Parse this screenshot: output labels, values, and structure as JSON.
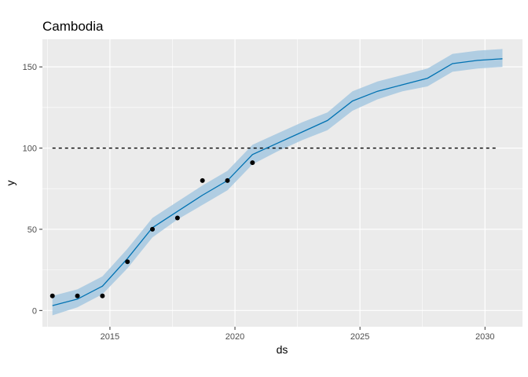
{
  "chart_data": {
    "type": "line",
    "title": "Cambodia",
    "xlabel": "ds",
    "ylabel": "y",
    "xlim": [
      2012.3,
      2031.5
    ],
    "ylim": [
      -10,
      167
    ],
    "x_ticks": [
      2015,
      2020,
      2025,
      2030
    ],
    "y_ticks": [
      0,
      50,
      100,
      150
    ],
    "grid": true,
    "colors": {
      "panel": "#ebebeb",
      "grid": "#ffffff",
      "forecast_line": "#0072b2",
      "interval_band": "#a6c8e0",
      "points": "#000000",
      "reference_line": "#000000"
    },
    "reference_line": {
      "y": 100,
      "x_start": 2012.7,
      "x_end": 2030.5,
      "style": "dashed"
    },
    "series": [
      {
        "kind": "points",
        "x": [
          2012.7,
          2013.7,
          2014.7,
          2015.7,
          2016.7,
          2017.7,
          2018.7,
          2019.7,
          2020.7
        ],
        "y": [
          9,
          9,
          9,
          30,
          50,
          57,
          80,
          80,
          91
        ]
      },
      {
        "kind": "line",
        "x": [
          2012.7,
          2013.7,
          2014.7,
          2015.7,
          2016.7,
          2017.7,
          2018.7,
          2019.7,
          2020.7,
          2021.7,
          2022.7,
          2023.7,
          2024.7,
          2025.7,
          2026.7,
          2027.7,
          2028.7,
          2029.7,
          2030.7
        ],
        "y": [
          3,
          7,
          15,
          32,
          51,
          61,
          71,
          80,
          96,
          103,
          110,
          117,
          129,
          135,
          139,
          143,
          152,
          154,
          155
        ]
      },
      {
        "kind": "interval",
        "x": [
          2012.7,
          2013.7,
          2014.7,
          2015.7,
          2016.7,
          2017.7,
          2018.7,
          2019.7,
          2020.7,
          2021.7,
          2022.7,
          2023.7,
          2024.7,
          2025.7,
          2026.7,
          2027.7,
          2028.7,
          2029.7,
          2030.7
        ],
        "lower": [
          -3,
          2,
          10,
          26,
          45,
          56,
          65,
          74,
          90,
          98,
          105,
          111,
          123,
          130,
          135,
          138,
          147,
          149,
          150
        ],
        "upper": [
          9,
          13,
          21,
          38,
          57,
          67,
          77,
          86,
          102,
          109,
          116,
          122,
          135,
          141,
          145,
          149,
          158,
          160,
          161
        ]
      }
    ]
  }
}
